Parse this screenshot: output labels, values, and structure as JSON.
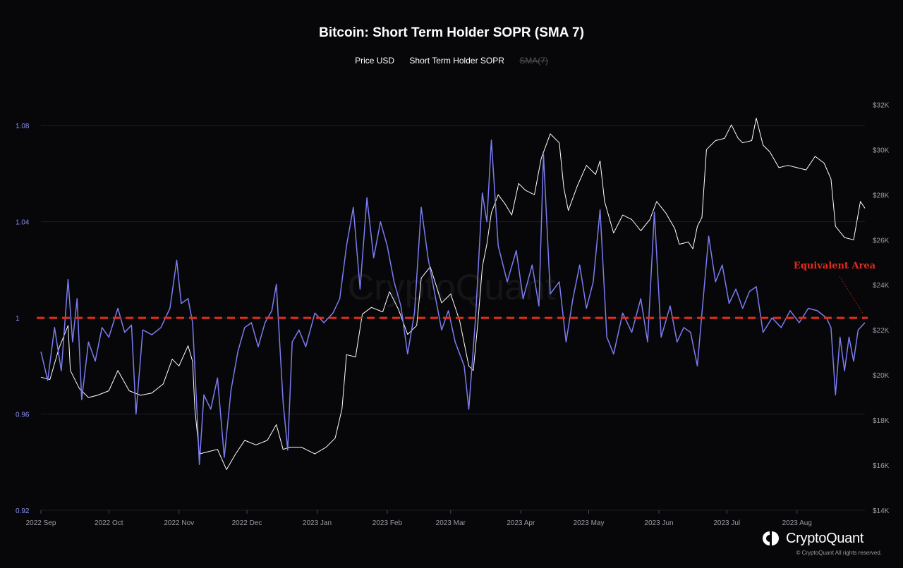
{
  "colors": {
    "background": "#070709",
    "price": "#ffffff",
    "sopr": "#7b7cf0",
    "reference_line": "#e52b1c",
    "annotation": "#e52b1c",
    "grid": "#1e1e24",
    "left_axis_text": "#8a8ff0",
    "right_axis_text": "#9b9ba3",
    "bottom_axis_text": "#9b9ba3"
  },
  "brand": {
    "name": "CryptoQuant",
    "copyright": "© CryptoQuant All rights reserved.",
    "watermark": "CryptoQuant"
  },
  "chart_data": {
    "type": "line",
    "title": "Bitcoin: Short Term Holder SOPR (SMA 7)",
    "legend": [
      {
        "label": "Price USD",
        "enabled": true
      },
      {
        "label": "Short Term Holder SOPR",
        "enabled": true
      },
      {
        "label": "SMA(7)",
        "enabled": false
      }
    ],
    "x_start": "2022-09-01",
    "x_end": "2023-08-31",
    "x_ticks": [
      {
        "date": "2022-09-01",
        "label": "2022 Sep"
      },
      {
        "date": "2022-10-01",
        "label": "2022 Oct"
      },
      {
        "date": "2022-11-01",
        "label": "2022 Nov"
      },
      {
        "date": "2022-12-01",
        "label": "2022 Dec"
      },
      {
        "date": "2023-01-01",
        "label": "2023 Jan"
      },
      {
        "date": "2023-02-01",
        "label": "2023 Feb"
      },
      {
        "date": "2023-03-01",
        "label": "2023 Mar"
      },
      {
        "date": "2023-04-01",
        "label": "2023 Apr"
      },
      {
        "date": "2023-05-01",
        "label": "2023 May"
      },
      {
        "date": "2023-06-01",
        "label": "2023 Jun"
      },
      {
        "date": "2023-07-01",
        "label": "2023 Jul"
      },
      {
        "date": "2023-08-01",
        "label": "2023 Aug"
      }
    ],
    "y_left": {
      "range": [
        0.92,
        1.1
      ],
      "ticks": [
        0.92,
        0.96,
        1,
        1.04,
        1.08
      ],
      "tick_labels": [
        "0.92",
        "0.96",
        "1",
        "1.04",
        "1.08"
      ]
    },
    "y_right": {
      "range": [
        14000,
        33200
      ],
      "ticks": [
        14000,
        16000,
        18000,
        20000,
        22000,
        24000,
        26000,
        28000,
        30000,
        32000
      ],
      "tick_labels": [
        "$14K",
        "$16K",
        "$18K",
        "$20K",
        "$22K",
        "$24K",
        "$26K",
        "$28K",
        "$30K",
        "$32K"
      ]
    },
    "grid": true,
    "reference_line": {
      "y": 1.0,
      "style": "dashed"
    },
    "annotation": {
      "text": "Equivalent Area",
      "target_date": "2023-08-31",
      "target_y": 1.0
    },
    "series": [
      {
        "name": "Price USD",
        "axis": "right",
        "points": [
          [
            "2022-09-01",
            19900
          ],
          [
            "2022-09-05",
            19800
          ],
          [
            "2022-09-09",
            21200
          ],
          [
            "2022-09-13",
            22200
          ],
          [
            "2022-09-14",
            20200
          ],
          [
            "2022-09-18",
            19400
          ],
          [
            "2022-09-22",
            19000
          ],
          [
            "2022-09-26",
            19100
          ],
          [
            "2022-10-01",
            19300
          ],
          [
            "2022-10-05",
            20200
          ],
          [
            "2022-10-10",
            19300
          ],
          [
            "2022-10-15",
            19100
          ],
          [
            "2022-10-20",
            19200
          ],
          [
            "2022-10-25",
            19600
          ],
          [
            "2022-10-29",
            20700
          ],
          [
            "2022-11-01",
            20400
          ],
          [
            "2022-11-05",
            21300
          ],
          [
            "2022-11-07",
            20600
          ],
          [
            "2022-11-08",
            18500
          ],
          [
            "2022-11-10",
            16500
          ],
          [
            "2022-11-14",
            16600
          ],
          [
            "2022-11-18",
            16700
          ],
          [
            "2022-11-22",
            15800
          ],
          [
            "2022-11-26",
            16500
          ],
          [
            "2022-11-30",
            17100
          ],
          [
            "2022-12-05",
            16900
          ],
          [
            "2022-12-10",
            17100
          ],
          [
            "2022-12-14",
            17800
          ],
          [
            "2022-12-17",
            16700
          ],
          [
            "2022-12-20",
            16800
          ],
          [
            "2022-12-25",
            16800
          ],
          [
            "2022-12-31",
            16500
          ],
          [
            "2023-01-05",
            16800
          ],
          [
            "2023-01-09",
            17200
          ],
          [
            "2023-01-12",
            18500
          ],
          [
            "2023-01-14",
            20900
          ],
          [
            "2023-01-18",
            20800
          ],
          [
            "2023-01-21",
            22700
          ],
          [
            "2023-01-25",
            23000
          ],
          [
            "2023-01-30",
            22800
          ],
          [
            "2023-02-02",
            23700
          ],
          [
            "2023-02-06",
            22900
          ],
          [
            "2023-02-10",
            21800
          ],
          [
            "2023-02-14",
            22200
          ],
          [
            "2023-02-16",
            24300
          ],
          [
            "2023-02-20",
            24800
          ],
          [
            "2023-02-25",
            23200
          ],
          [
            "2023-03-01",
            23600
          ],
          [
            "2023-03-05",
            22400
          ],
          [
            "2023-03-09",
            20400
          ],
          [
            "2023-03-11",
            20200
          ],
          [
            "2023-03-13",
            22300
          ],
          [
            "2023-03-15",
            24800
          ],
          [
            "2023-03-17",
            25800
          ],
          [
            "2023-03-19",
            27200
          ],
          [
            "2023-03-22",
            28000
          ],
          [
            "2023-03-25",
            27600
          ],
          [
            "2023-03-28",
            27100
          ],
          [
            "2023-03-31",
            28500
          ],
          [
            "2023-04-03",
            28200
          ],
          [
            "2023-04-07",
            28000
          ],
          [
            "2023-04-10",
            29600
          ],
          [
            "2023-04-14",
            30700
          ],
          [
            "2023-04-18",
            30300
          ],
          [
            "2023-04-20",
            28300
          ],
          [
            "2023-04-22",
            27300
          ],
          [
            "2023-04-26",
            28400
          ],
          [
            "2023-04-30",
            29300
          ],
          [
            "2023-05-04",
            28900
          ],
          [
            "2023-05-06",
            29500
          ],
          [
            "2023-05-08",
            27700
          ],
          [
            "2023-05-12",
            26300
          ],
          [
            "2023-05-16",
            27100
          ],
          [
            "2023-05-20",
            26900
          ],
          [
            "2023-05-24",
            26400
          ],
          [
            "2023-05-28",
            26900
          ],
          [
            "2023-05-31",
            27700
          ],
          [
            "2023-06-04",
            27200
          ],
          [
            "2023-06-08",
            26500
          ],
          [
            "2023-06-10",
            25800
          ],
          [
            "2023-06-14",
            25900
          ],
          [
            "2023-06-16",
            25600
          ],
          [
            "2023-06-18",
            26600
          ],
          [
            "2023-06-20",
            27000
          ],
          [
            "2023-06-22",
            30000
          ],
          [
            "2023-06-26",
            30400
          ],
          [
            "2023-06-30",
            30500
          ],
          [
            "2023-07-03",
            31100
          ],
          [
            "2023-07-06",
            30500
          ],
          [
            "2023-07-08",
            30300
          ],
          [
            "2023-07-12",
            30400
          ],
          [
            "2023-07-14",
            31400
          ],
          [
            "2023-07-17",
            30200
          ],
          [
            "2023-07-20",
            29900
          ],
          [
            "2023-07-24",
            29200
          ],
          [
            "2023-07-28",
            29300
          ],
          [
            "2023-08-01",
            29200
          ],
          [
            "2023-08-05",
            29100
          ],
          [
            "2023-08-09",
            29700
          ],
          [
            "2023-08-13",
            29400
          ],
          [
            "2023-08-16",
            28700
          ],
          [
            "2023-08-18",
            26600
          ],
          [
            "2023-08-22",
            26100
          ],
          [
            "2023-08-26",
            26000
          ],
          [
            "2023-08-29",
            27700
          ],
          [
            "2023-08-31",
            27400
          ]
        ]
      },
      {
        "name": "Short Term Holder SOPR",
        "axis": "left",
        "points": [
          [
            "2022-09-01",
            0.986
          ],
          [
            "2022-09-04",
            0.974
          ],
          [
            "2022-09-07",
            0.996
          ],
          [
            "2022-09-10",
            0.978
          ],
          [
            "2022-09-13",
            1.016
          ],
          [
            "2022-09-15",
            0.99
          ],
          [
            "2022-09-17",
            1.008
          ],
          [
            "2022-09-19",
            0.966
          ],
          [
            "2022-09-22",
            0.99
          ],
          [
            "2022-09-25",
            0.982
          ],
          [
            "2022-09-28",
            0.996
          ],
          [
            "2022-10-01",
            0.992
          ],
          [
            "2022-10-05",
            1.004
          ],
          [
            "2022-10-08",
            0.994
          ],
          [
            "2022-10-11",
            0.997
          ],
          [
            "2022-10-13",
            0.96
          ],
          [
            "2022-10-16",
            0.995
          ],
          [
            "2022-10-20",
            0.993
          ],
          [
            "2022-10-24",
            0.996
          ],
          [
            "2022-10-28",
            1.004
          ],
          [
            "2022-10-31",
            1.024
          ],
          [
            "2022-11-02",
            1.006
          ],
          [
            "2022-11-05",
            1.008
          ],
          [
            "2022-11-07",
            0.998
          ],
          [
            "2022-11-09",
            0.96
          ],
          [
            "2022-11-10",
            0.939
          ],
          [
            "2022-11-12",
            0.968
          ],
          [
            "2022-11-15",
            0.962
          ],
          [
            "2022-11-18",
            0.975
          ],
          [
            "2022-11-21",
            0.942
          ],
          [
            "2022-11-24",
            0.97
          ],
          [
            "2022-11-27",
            0.986
          ],
          [
            "2022-11-30",
            0.996
          ],
          [
            "2022-12-03",
            0.998
          ],
          [
            "2022-12-06",
            0.988
          ],
          [
            "2022-12-09",
            0.998
          ],
          [
            "2022-12-12",
            1.003
          ],
          [
            "2022-12-14",
            1.014
          ],
          [
            "2022-12-17",
            0.965
          ],
          [
            "2022-12-19",
            0.945
          ],
          [
            "2022-12-21",
            0.99
          ],
          [
            "2022-12-24",
            0.995
          ],
          [
            "2022-12-27",
            0.988
          ],
          [
            "2022-12-31",
            1.002
          ],
          [
            "2023-01-04",
            0.998
          ],
          [
            "2023-01-08",
            1.002
          ],
          [
            "2023-01-11",
            1.008
          ],
          [
            "2023-01-14",
            1.03
          ],
          [
            "2023-01-17",
            1.046
          ],
          [
            "2023-01-20",
            1.012
          ],
          [
            "2023-01-23",
            1.05
          ],
          [
            "2023-01-26",
            1.025
          ],
          [
            "2023-01-29",
            1.04
          ],
          [
            "2023-02-01",
            1.03
          ],
          [
            "2023-02-04",
            1.015
          ],
          [
            "2023-02-07",
            1.005
          ],
          [
            "2023-02-10",
            0.985
          ],
          [
            "2023-02-13",
            1.002
          ],
          [
            "2023-02-16",
            1.046
          ],
          [
            "2023-02-19",
            1.025
          ],
          [
            "2023-02-22",
            1.01
          ],
          [
            "2023-02-25",
            0.995
          ],
          [
            "2023-02-28",
            1.003
          ],
          [
            "2023-03-03",
            0.99
          ],
          [
            "2023-03-07",
            0.98
          ],
          [
            "2023-03-09",
            0.962
          ],
          [
            "2023-03-12",
            1.0
          ],
          [
            "2023-03-15",
            1.052
          ],
          [
            "2023-03-17",
            1.04
          ],
          [
            "2023-03-19",
            1.074
          ],
          [
            "2023-03-22",
            1.03
          ],
          [
            "2023-03-26",
            1.015
          ],
          [
            "2023-03-30",
            1.028
          ],
          [
            "2023-04-02",
            1.008
          ],
          [
            "2023-04-06",
            1.022
          ],
          [
            "2023-04-09",
            1.005
          ],
          [
            "2023-04-11",
            1.068
          ],
          [
            "2023-04-14",
            1.01
          ],
          [
            "2023-04-18",
            1.015
          ],
          [
            "2023-04-21",
            0.99
          ],
          [
            "2023-04-24",
            1.008
          ],
          [
            "2023-04-27",
            1.022
          ],
          [
            "2023-04-30",
            1.004
          ],
          [
            "2023-05-03",
            1.015
          ],
          [
            "2023-05-06",
            1.045
          ],
          [
            "2023-05-09",
            0.992
          ],
          [
            "2023-05-12",
            0.985
          ],
          [
            "2023-05-16",
            1.002
          ],
          [
            "2023-05-20",
            0.994
          ],
          [
            "2023-05-24",
            1.008
          ],
          [
            "2023-05-27",
            0.99
          ],
          [
            "2023-05-30",
            1.044
          ],
          [
            "2023-06-02",
            0.992
          ],
          [
            "2023-06-06",
            1.005
          ],
          [
            "2023-06-09",
            0.99
          ],
          [
            "2023-06-12",
            0.996
          ],
          [
            "2023-06-15",
            0.994
          ],
          [
            "2023-06-18",
            0.98
          ],
          [
            "2023-06-20",
            1.002
          ],
          [
            "2023-06-23",
            1.034
          ],
          [
            "2023-06-26",
            1.015
          ],
          [
            "2023-06-29",
            1.022
          ],
          [
            "2023-07-02",
            1.006
          ],
          [
            "2023-07-05",
            1.012
          ],
          [
            "2023-07-08",
            1.004
          ],
          [
            "2023-07-11",
            1.011
          ],
          [
            "2023-07-14",
            1.013
          ],
          [
            "2023-07-17",
            0.994
          ],
          [
            "2023-07-21",
            1.0
          ],
          [
            "2023-07-25",
            0.996
          ],
          [
            "2023-07-29",
            1.003
          ],
          [
            "2023-08-02",
            0.998
          ],
          [
            "2023-08-06",
            1.004
          ],
          [
            "2023-08-10",
            1.003
          ],
          [
            "2023-08-14",
            1.0
          ],
          [
            "2023-08-16",
            0.996
          ],
          [
            "2023-08-18",
            0.968
          ],
          [
            "2023-08-20",
            0.992
          ],
          [
            "2023-08-22",
            0.978
          ],
          [
            "2023-08-24",
            0.992
          ],
          [
            "2023-08-26",
            0.982
          ],
          [
            "2023-08-28",
            0.995
          ],
          [
            "2023-08-31",
            0.998
          ]
        ]
      }
    ]
  }
}
